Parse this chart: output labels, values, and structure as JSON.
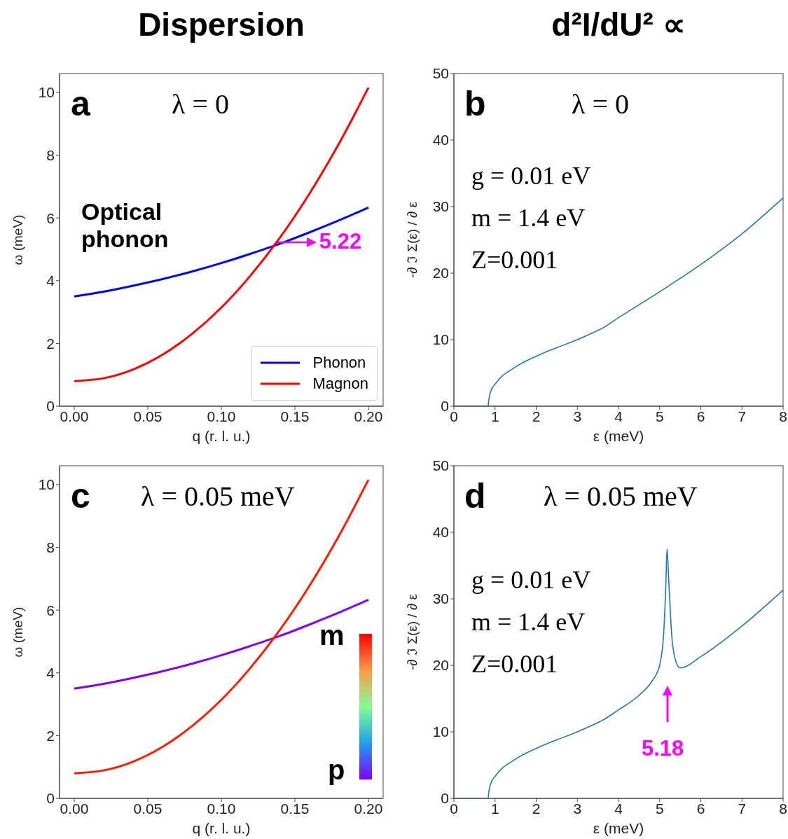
{
  "chart_data": [
    {
      "type": "line",
      "title": "Dispersion",
      "xlabel": "q (r. l. u.)",
      "ylabel": "ω (meV)",
      "x": [
        0,
        0.02,
        0.04,
        0.06,
        0.08,
        0.1,
        0.12,
        0.14,
        0.16,
        0.18,
        0.2
      ],
      "series": [
        {
          "name": "Phonon",
          "color": "#0000ff",
          "values": [
            3.5,
            3.65,
            3.84,
            4.05,
            4.29,
            4.56,
            4.86,
            5.18,
            5.54,
            5.92,
            6.33
          ]
        },
        {
          "name": "Magnon",
          "color": "#ff0000",
          "values": [
            0.8,
            0.89,
            1.17,
            1.64,
            2.3,
            3.14,
            4.17,
            5.38,
            6.78,
            8.37,
            10.15
          ]
        }
      ],
      "xlim": [
        -0.01,
        0.21
      ],
      "xticks": [
        {
          "value": 0,
          "label": "0.00"
        },
        {
          "value": 0.05,
          "label": "0.05"
        },
        {
          "value": 0.1,
          "label": "0.10"
        },
        {
          "value": 0.15,
          "label": "0.15"
        },
        {
          "value": 0.2,
          "label": "0.20"
        }
      ],
      "ylim": [
        0,
        10.6
      ],
      "yticks": [
        0,
        2,
        4,
        6,
        8,
        10
      ],
      "grid": false,
      "legend": "bottom right",
      "annotations": [
        "a",
        "λ = 0",
        "Optical phonon",
        {
          "text": "5.22",
          "x": 0.138,
          "y": 5.22
        }
      ]
    },
    {
      "type": "line",
      "title": "d²I/dU² ∝",
      "xlabel": "ε (meV)",
      "ylabel": "-∂ ℑ Σ(ε) / ∂ ε",
      "x": [
        0,
        0.83,
        0.85,
        0.9,
        1,
        1.5,
        2,
        2.5,
        3,
        3.5,
        3.6,
        4,
        5,
        6,
        7,
        8
      ],
      "series": [
        {
          "color": "#1f77b4",
          "values": [
            0,
            0,
            1,
            2.3,
            3.3,
            5.9,
            7.5,
            8.8,
            10,
            11.4,
            11.7,
            13.3,
            17.2,
            21.3,
            25.9,
            31.3
          ]
        }
      ],
      "xlim": [
        0,
        8
      ],
      "xticks": [
        0,
        1,
        2,
        3,
        4,
        5,
        6,
        7,
        8
      ],
      "ylim": [
        0,
        50
      ],
      "yticks": [
        0,
        10,
        20,
        30,
        40,
        50
      ],
      "grid": false,
      "annotations": [
        "b",
        "λ = 0",
        "g = 0.01 eV",
        "m = 1.4 eV",
        "Z=0.001"
      ]
    },
    {
      "type": "line",
      "xlabel": "q (r. l. u.)",
      "ylabel": "ω (meV)",
      "x": [
        0,
        0.02,
        0.04,
        0.06,
        0.08,
        0.1,
        0.12,
        0.14,
        0.16,
        0.18,
        0.2
      ],
      "series": [
        {
          "color": "#8000ff",
          "values": [
            3.5,
            3.65,
            3.84,
            4.05,
            4.29,
            4.56,
            4.86,
            5.18,
            5.54,
            5.92,
            6.33
          ]
        },
        {
          "color": "#ff1a00",
          "values": [
            0.8,
            0.89,
            1.17,
            1.64,
            2.3,
            3.14,
            4.17,
            5.38,
            6.78,
            8.37,
            10.15
          ]
        }
      ],
      "xlim": [
        -0.01,
        0.21
      ],
      "xticks": [
        {
          "value": 0,
          "label": "0.00"
        },
        {
          "value": 0.05,
          "label": "0.05"
        },
        {
          "value": 0.1,
          "label": "0.10"
        },
        {
          "value": 0.15,
          "label": "0.15"
        },
        {
          "value": 0.2,
          "label": "0.20"
        }
      ],
      "ylim": [
        0,
        10.6
      ],
      "yticks": [
        0,
        2,
        4,
        6,
        8,
        10
      ],
      "grid": false,
      "annotations": [
        "c",
        "λ = 0.05 meV",
        "m",
        "p"
      ]
    },
    {
      "type": "line",
      "xlabel": "ε (meV)",
      "ylabel": "-∂ ℑ Σ(ε) / ∂ ε",
      "x": [
        0,
        0.83,
        0.85,
        0.9,
        1,
        1.5,
        2,
        2.5,
        3,
        3.5,
        3.6,
        4,
        4.5,
        4.8,
        5,
        5.1,
        5.15,
        5.18,
        5.22,
        5.3,
        5.4,
        5.5,
        6,
        7,
        8
      ],
      "series": [
        {
          "color": "#1f77b4",
          "values": [
            0,
            0,
            1,
            2.3,
            3.3,
            5.9,
            7.5,
            8.8,
            10,
            11.4,
            11.7,
            13.3,
            15.5,
            17.5,
            20,
            25,
            32,
            37.5,
            33,
            24,
            20.5,
            19.6,
            21.3,
            25.9,
            31.3
          ]
        }
      ],
      "xlim": [
        0,
        8
      ],
      "xticks": [
        0,
        1,
        2,
        3,
        4,
        5,
        6,
        7,
        8
      ],
      "ylim": [
        0,
        50
      ],
      "yticks": [
        0,
        10,
        20,
        30,
        40,
        50
      ],
      "grid": false,
      "annotations": [
        "d",
        "λ = 0.05 meV",
        "g = 0.01 eV",
        "m = 1.4 eV",
        "Z=0.001",
        "5.18"
      ]
    }
  ]
}
